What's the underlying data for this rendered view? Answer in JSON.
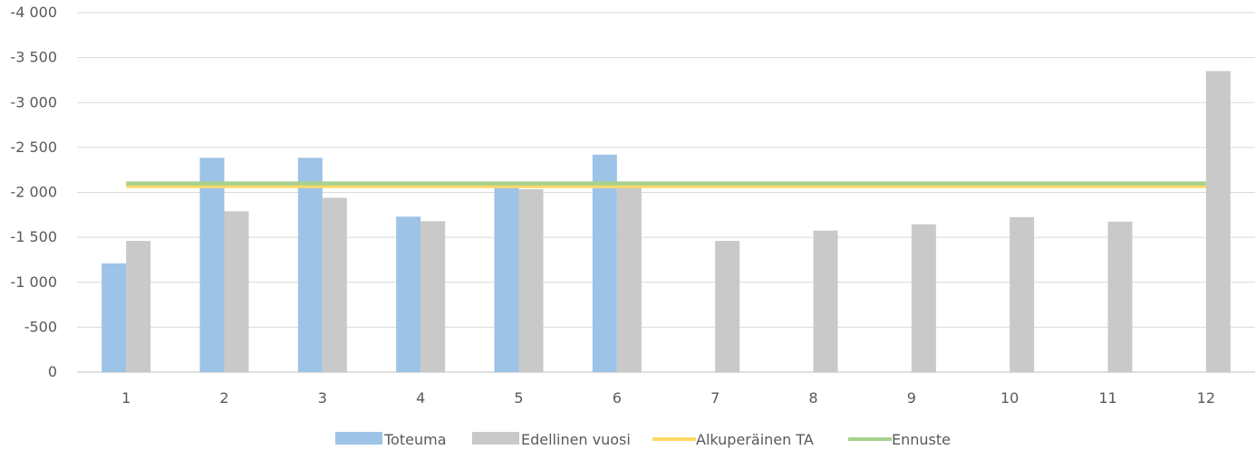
{
  "chart_data": {
    "type": "bar",
    "categories": [
      "1",
      "2",
      "3",
      "4",
      "5",
      "6",
      "7",
      "8",
      "9",
      "10",
      "11",
      "12"
    ],
    "y_tick_labels": [
      "0",
      "-500",
      "-1 000",
      "-1 500",
      "-2 000",
      "-2 500",
      "-3 000",
      "-3 500",
      "-4 000"
    ],
    "y_tick_values": [
      0,
      -500,
      -1000,
      -1500,
      -2000,
      -2500,
      -3000,
      -3500,
      -4000
    ],
    "ylim": [
      0,
      -4000
    ],
    "grid": true,
    "legend_position": "bottom",
    "series": [
      {
        "name": "Toteuma",
        "kind": "bar",
        "color": "#9dc3e6",
        "values": [
          -1210,
          -2385,
          -2385,
          -1730,
          -2055,
          -2420,
          null,
          null,
          null,
          null,
          null,
          null
        ]
      },
      {
        "name": "Edellinen vuosi",
        "kind": "bar",
        "color": "#c9c9c9",
        "values": [
          -1460,
          -1790,
          -1940,
          -1680,
          -2035,
          -2060,
          -1460,
          -1575,
          -1645,
          -1725,
          -1675,
          -3350
        ]
      },
      {
        "name": "Alkuperäinen TA",
        "kind": "line",
        "color": "#ffd966",
        "values": [
          -2070,
          -2070,
          -2070,
          -2070,
          -2070,
          -2070,
          -2070,
          -2070,
          -2070,
          -2070,
          -2070,
          -2070
        ]
      },
      {
        "name": "Ennuste",
        "kind": "line",
        "color": "#a9d18e",
        "values": [
          -2100,
          -2100,
          -2100,
          -2100,
          -2100,
          -2100,
          -2100,
          -2100,
          -2100,
          -2100,
          -2100,
          -2100
        ]
      }
    ]
  }
}
